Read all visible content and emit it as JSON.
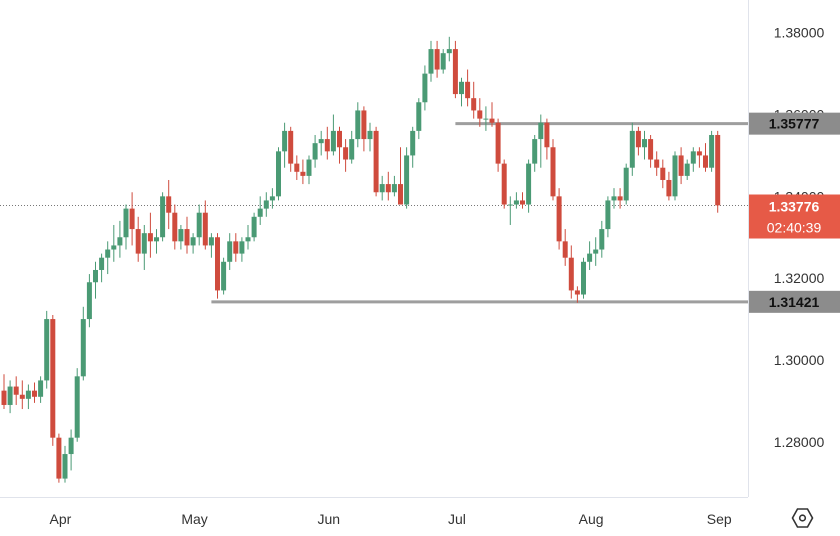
{
  "chart_data": {
    "type": "candlestick",
    "x_axis": {
      "tick_labels": [
        "Apr",
        "May",
        "Jun",
        "Jul",
        "Aug",
        "Sep"
      ],
      "tick_positions": [
        4,
        26,
        48,
        69,
        91,
        112
      ]
    },
    "y_axis": {
      "ylim": [
        1.2665,
        1.388
      ],
      "tick_values": [
        1.28,
        1.3,
        1.32,
        1.34,
        1.36,
        1.38
      ],
      "tick_labels": [
        "1.28000",
        "1.30000",
        "1.32000",
        "1.34000",
        "1.36000",
        "1.38000"
      ],
      "side": "right"
    },
    "colors": {
      "up": "#4a9a74",
      "down": "#cf4b3d",
      "level_line": "#9e9e9e",
      "level_label_bg": "#8c8c8c",
      "price_label_bg": "#e65a47",
      "grid": "none",
      "text": "#333333"
    },
    "candles": [
      [
        1.2925,
        1.2965,
        1.288,
        1.289
      ],
      [
        1.289,
        1.295,
        1.287,
        1.2935
      ],
      [
        1.2935,
        1.296,
        1.289,
        1.2915
      ],
      [
        1.2915,
        1.295,
        1.288,
        1.2905
      ],
      [
        1.2905,
        1.294,
        1.288,
        1.2925
      ],
      [
        1.2925,
        1.2945,
        1.2895,
        1.291
      ],
      [
        1.291,
        1.296,
        1.2895,
        1.295
      ],
      [
        1.295,
        1.312,
        1.293,
        1.31
      ],
      [
        1.31,
        1.311,
        1.279,
        1.281
      ],
      [
        1.281,
        1.282,
        1.27,
        1.271
      ],
      [
        1.271,
        1.279,
        1.27,
        1.277
      ],
      [
        1.277,
        1.283,
        1.273,
        1.281
      ],
      [
        1.281,
        1.298,
        1.28,
        1.296
      ],
      [
        1.296,
        1.313,
        1.295,
        1.31
      ],
      [
        1.31,
        1.321,
        1.308,
        1.319
      ],
      [
        1.319,
        1.324,
        1.315,
        1.322
      ],
      [
        1.322,
        1.326,
        1.319,
        1.325
      ],
      [
        1.325,
        1.329,
        1.321,
        1.327
      ],
      [
        1.327,
        1.333,
        1.324,
        1.328
      ],
      [
        1.328,
        1.334,
        1.325,
        1.33
      ],
      [
        1.33,
        1.338,
        1.327,
        1.337
      ],
      [
        1.337,
        1.341,
        1.328,
        1.332
      ],
      [
        1.332,
        1.335,
        1.324,
        1.326
      ],
      [
        1.326,
        1.333,
        1.322,
        1.331
      ],
      [
        1.331,
        1.336,
        1.325,
        1.329
      ],
      [
        1.329,
        1.332,
        1.326,
        1.33
      ],
      [
        1.33,
        1.341,
        1.329,
        1.34
      ],
      [
        1.34,
        1.344,
        1.332,
        1.336
      ],
      [
        1.336,
        1.338,
        1.327,
        1.329
      ],
      [
        1.329,
        1.333,
        1.327,
        1.332
      ],
      [
        1.332,
        1.335,
        1.326,
        1.328
      ],
      [
        1.328,
        1.331,
        1.326,
        1.33
      ],
      [
        1.33,
        1.338,
        1.328,
        1.336
      ],
      [
        1.336,
        1.339,
        1.327,
        1.328
      ],
      [
        1.328,
        1.331,
        1.325,
        1.33
      ],
      [
        1.33,
        1.331,
        1.315,
        1.317
      ],
      [
        1.317,
        1.325,
        1.316,
        1.324
      ],
      [
        1.324,
        1.331,
        1.322,
        1.329
      ],
      [
        1.329,
        1.331,
        1.324,
        1.326
      ],
      [
        1.326,
        1.33,
        1.324,
        1.329
      ],
      [
        1.329,
        1.333,
        1.327,
        1.33
      ],
      [
        1.33,
        1.336,
        1.329,
        1.335
      ],
      [
        1.335,
        1.34,
        1.333,
        1.337
      ],
      [
        1.337,
        1.341,
        1.335,
        1.339
      ],
      [
        1.339,
        1.342,
        1.337,
        1.34
      ],
      [
        1.34,
        1.352,
        1.339,
        1.351
      ],
      [
        1.351,
        1.358,
        1.347,
        1.356
      ],
      [
        1.356,
        1.357,
        1.346,
        1.348
      ],
      [
        1.348,
        1.35,
        1.344,
        1.346
      ],
      [
        1.346,
        1.349,
        1.343,
        1.345
      ],
      [
        1.345,
        1.35,
        1.343,
        1.349
      ],
      [
        1.349,
        1.355,
        1.347,
        1.353
      ],
      [
        1.353,
        1.356,
        1.35,
        1.354
      ],
      [
        1.354,
        1.357,
        1.349,
        1.351
      ],
      [
        1.351,
        1.36,
        1.35,
        1.356
      ],
      [
        1.356,
        1.357,
        1.348,
        1.352
      ],
      [
        1.352,
        1.354,
        1.346,
        1.349
      ],
      [
        1.349,
        1.356,
        1.348,
        1.354
      ],
      [
        1.354,
        1.363,
        1.352,
        1.361
      ],
      [
        1.361,
        1.362,
        1.351,
        1.354
      ],
      [
        1.354,
        1.358,
        1.351,
        1.356
      ],
      [
        1.356,
        1.357,
        1.34,
        1.341
      ],
      [
        1.341,
        1.345,
        1.339,
        1.343
      ],
      [
        1.343,
        1.346,
        1.339,
        1.341
      ],
      [
        1.341,
        1.345,
        1.34,
        1.343
      ],
      [
        1.343,
        1.352,
        1.338,
        1.338
      ],
      [
        1.338,
        1.352,
        1.337,
        1.35
      ],
      [
        1.35,
        1.357,
        1.347,
        1.356
      ],
      [
        1.356,
        1.364,
        1.354,
        1.363
      ],
      [
        1.363,
        1.372,
        1.361,
        1.37
      ],
      [
        1.37,
        1.378,
        1.368,
        1.376
      ],
      [
        1.376,
        1.378,
        1.369,
        1.371
      ],
      [
        1.371,
        1.376,
        1.37,
        1.375
      ],
      [
        1.375,
        1.379,
        1.373,
        1.376
      ],
      [
        1.376,
        1.378,
        1.364,
        1.365
      ],
      [
        1.365,
        1.369,
        1.362,
        1.368
      ],
      [
        1.368,
        1.371,
        1.362,
        1.364
      ],
      [
        1.364,
        1.368,
        1.359,
        1.361
      ],
      [
        1.361,
        1.364,
        1.357,
        1.359
      ],
      [
        1.359,
        1.362,
        1.356,
        1.359
      ],
      [
        1.359,
        1.363,
        1.357,
        1.358
      ],
      [
        1.358,
        1.359,
        1.346,
        1.348
      ],
      [
        1.348,
        1.349,
        1.337,
        1.338
      ],
      [
        1.338,
        1.34,
        1.333,
        1.338
      ],
      [
        1.338,
        1.341,
        1.337,
        1.339
      ],
      [
        1.339,
        1.341,
        1.337,
        1.338
      ],
      [
        1.338,
        1.349,
        1.336,
        1.348
      ],
      [
        1.348,
        1.355,
        1.346,
        1.354
      ],
      [
        1.354,
        1.36,
        1.347,
        1.358
      ],
      [
        1.358,
        1.359,
        1.349,
        1.352
      ],
      [
        1.352,
        1.354,
        1.339,
        1.34
      ],
      [
        1.34,
        1.342,
        1.327,
        1.329
      ],
      [
        1.329,
        1.332,
        1.323,
        1.325
      ],
      [
        1.325,
        1.328,
        1.315,
        1.317
      ],
      [
        1.317,
        1.318,
        1.314,
        1.316
      ],
      [
        1.316,
        1.325,
        1.315,
        1.324
      ],
      [
        1.324,
        1.329,
        1.322,
        1.326
      ],
      [
        1.326,
        1.33,
        1.323,
        1.327
      ],
      [
        1.327,
        1.334,
        1.325,
        1.332
      ],
      [
        1.332,
        1.34,
        1.33,
        1.339
      ],
      [
        1.339,
        1.342,
        1.337,
        1.34
      ],
      [
        1.34,
        1.342,
        1.337,
        1.339
      ],
      [
        1.339,
        1.348,
        1.338,
        1.347
      ],
      [
        1.347,
        1.358,
        1.345,
        1.356
      ],
      [
        1.356,
        1.357,
        1.35,
        1.352
      ],
      [
        1.352,
        1.356,
        1.349,
        1.354
      ],
      [
        1.354,
        1.355,
        1.347,
        1.349
      ],
      [
        1.349,
        1.351,
        1.345,
        1.347
      ],
      [
        1.347,
        1.349,
        1.342,
        1.344
      ],
      [
        1.344,
        1.346,
        1.339,
        1.34
      ],
      [
        1.34,
        1.351,
        1.339,
        1.35
      ],
      [
        1.35,
        1.352,
        1.343,
        1.345
      ],
      [
        1.345,
        1.349,
        1.344,
        1.348
      ],
      [
        1.348,
        1.352,
        1.346,
        1.351
      ],
      [
        1.351,
        1.352,
        1.347,
        1.35
      ],
      [
        1.35,
        1.353,
        1.346,
        1.347
      ],
      [
        1.347,
        1.356,
        1.346,
        1.355
      ],
      [
        1.355,
        1.356,
        1.336,
        1.3378
      ]
    ],
    "levels": [
      {
        "value": 1.35777,
        "label": "1.35777",
        "start_index": 74
      },
      {
        "value": 1.31421,
        "label": "1.31421",
        "start_index": 34
      }
    ],
    "current_price": {
      "value": 1.33776,
      "label": "1.33776",
      "countdown": "02:40:39"
    }
  }
}
